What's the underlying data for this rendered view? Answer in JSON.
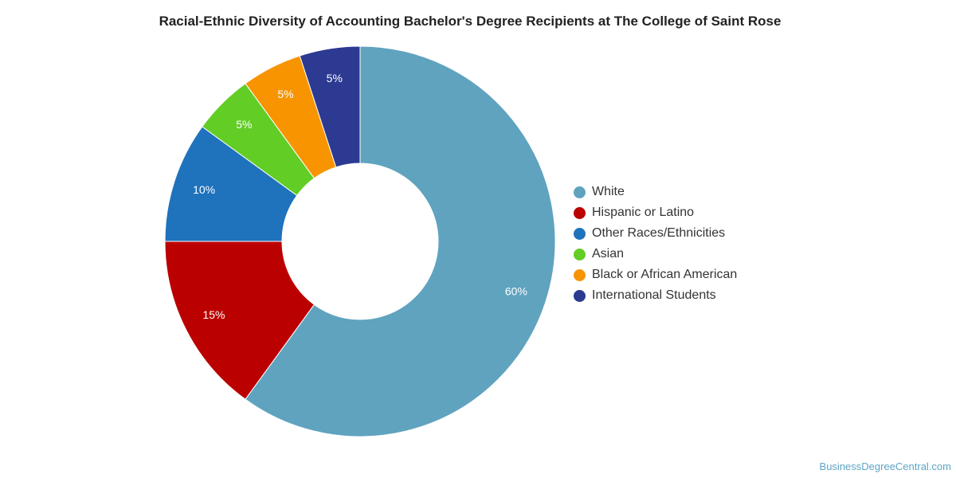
{
  "chart_data": {
    "type": "pie",
    "variant": "donut",
    "title": "Racial-Ethnic Diversity of Accounting Bachelor's Degree Recipients at The College of Saint Rose",
    "categories": [
      "White",
      "Hispanic or Latino",
      "Other Races/Ethnicities",
      "Asian",
      "Black or African American",
      "International Students"
    ],
    "values": [
      60,
      15,
      10,
      5,
      5,
      5
    ],
    "data_labels": [
      "60%",
      "15%",
      "10%",
      "5%",
      "5%",
      "5%"
    ],
    "colors": [
      "#5fa3bf",
      "#bb0000",
      "#1f72bc",
      "#62cd25",
      "#f79400",
      "#2c3a91"
    ],
    "legend_position": "right",
    "start_angle_deg": 0,
    "direction": "clockwise"
  },
  "watermark": "BusinessDegreeCentral.com"
}
